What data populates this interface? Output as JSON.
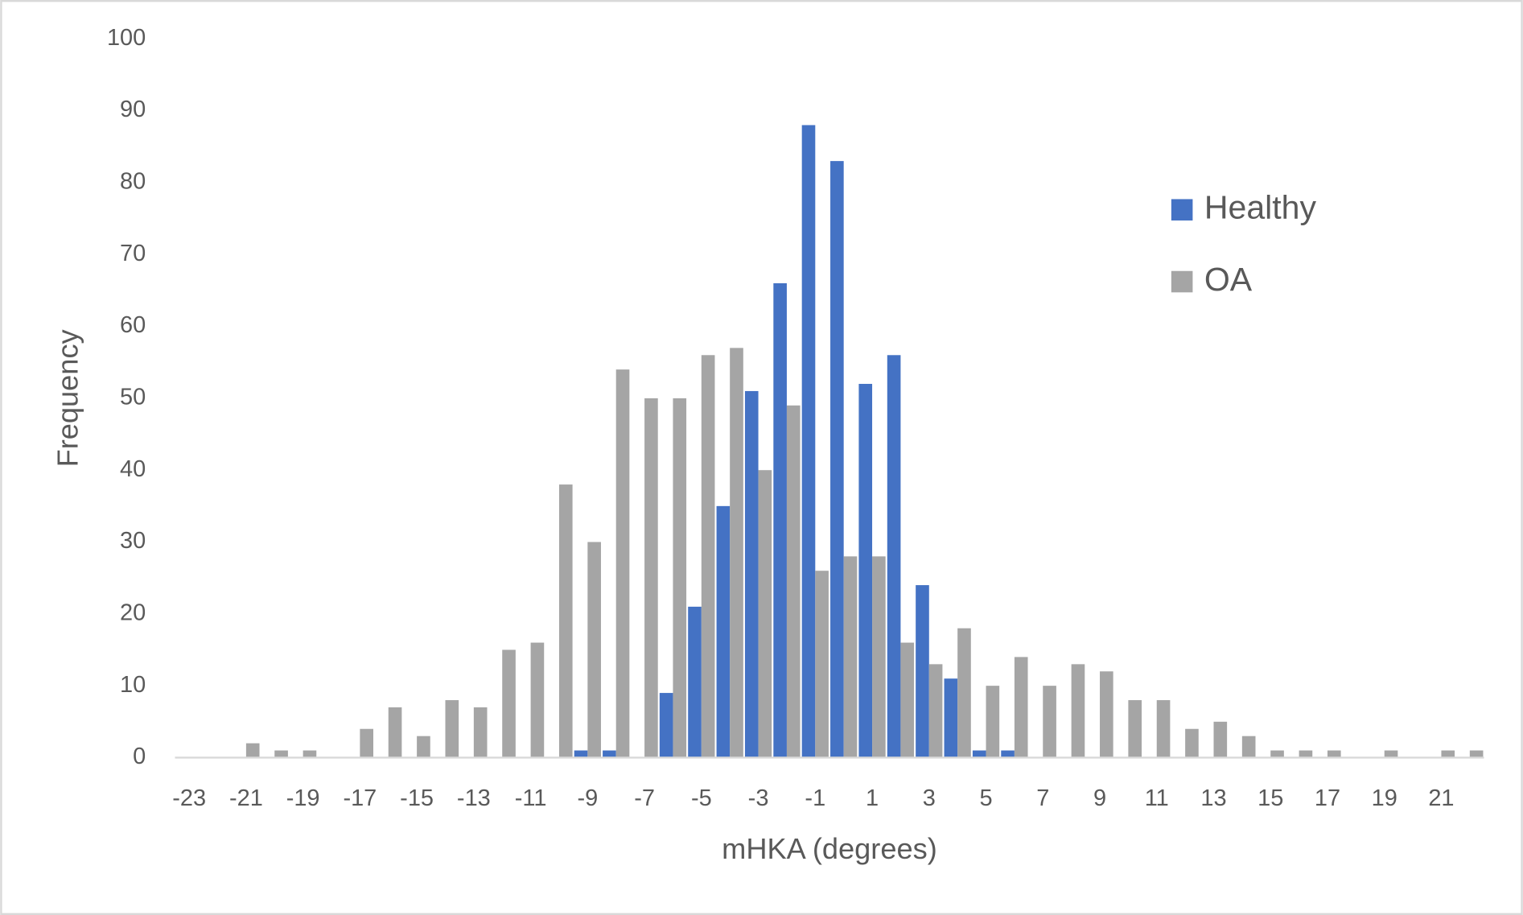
{
  "chart_data": {
    "type": "bar",
    "x_label": "mHKA (degrees)",
    "y_label": "Frequency",
    "categories": [
      -23,
      null,
      -21,
      null,
      -19,
      null,
      -17,
      null,
      -15,
      null,
      -13,
      null,
      -11,
      null,
      -9,
      null,
      -7,
      null,
      -5,
      null,
      -3,
      null,
      -1,
      null,
      1,
      null,
      3,
      null,
      5,
      null,
      7,
      null,
      9,
      null,
      11,
      null,
      13,
      null,
      15,
      null,
      17,
      null,
      19,
      null,
      21,
      null
    ],
    "series": [
      {
        "name": "Healthy",
        "color": "#4472c4",
        "values": [
          0,
          0,
          0,
          0,
          0,
          0,
          0,
          0,
          0,
          0,
          0,
          0,
          0,
          0,
          1,
          1,
          0,
          9,
          21,
          35,
          51,
          66,
          88,
          83,
          52,
          56,
          24,
          11,
          1,
          1,
          0,
          0,
          0,
          0,
          0,
          0,
          0,
          0,
          0,
          0,
          0,
          0,
          0,
          0,
          0,
          0
        ]
      },
      {
        "name": "OA",
        "color": "#a5a5a5",
        "values": [
          0,
          0,
          2,
          1,
          1,
          0,
          4,
          7,
          3,
          8,
          7,
          15,
          16,
          38,
          30,
          54,
          50,
          50,
          56,
          57,
          40,
          49,
          26,
          28,
          28,
          16,
          13,
          18,
          10,
          14,
          10,
          13,
          12,
          8,
          8,
          4,
          5,
          3,
          1,
          1,
          1,
          0,
          1,
          0,
          1,
          1
        ]
      }
    ],
    "ylim": [
      0,
      100
    ],
    "yticks": [
      0,
      10,
      20,
      30,
      40,
      50,
      60,
      70,
      80,
      90,
      100
    ],
    "grid": false,
    "legend": "right"
  }
}
